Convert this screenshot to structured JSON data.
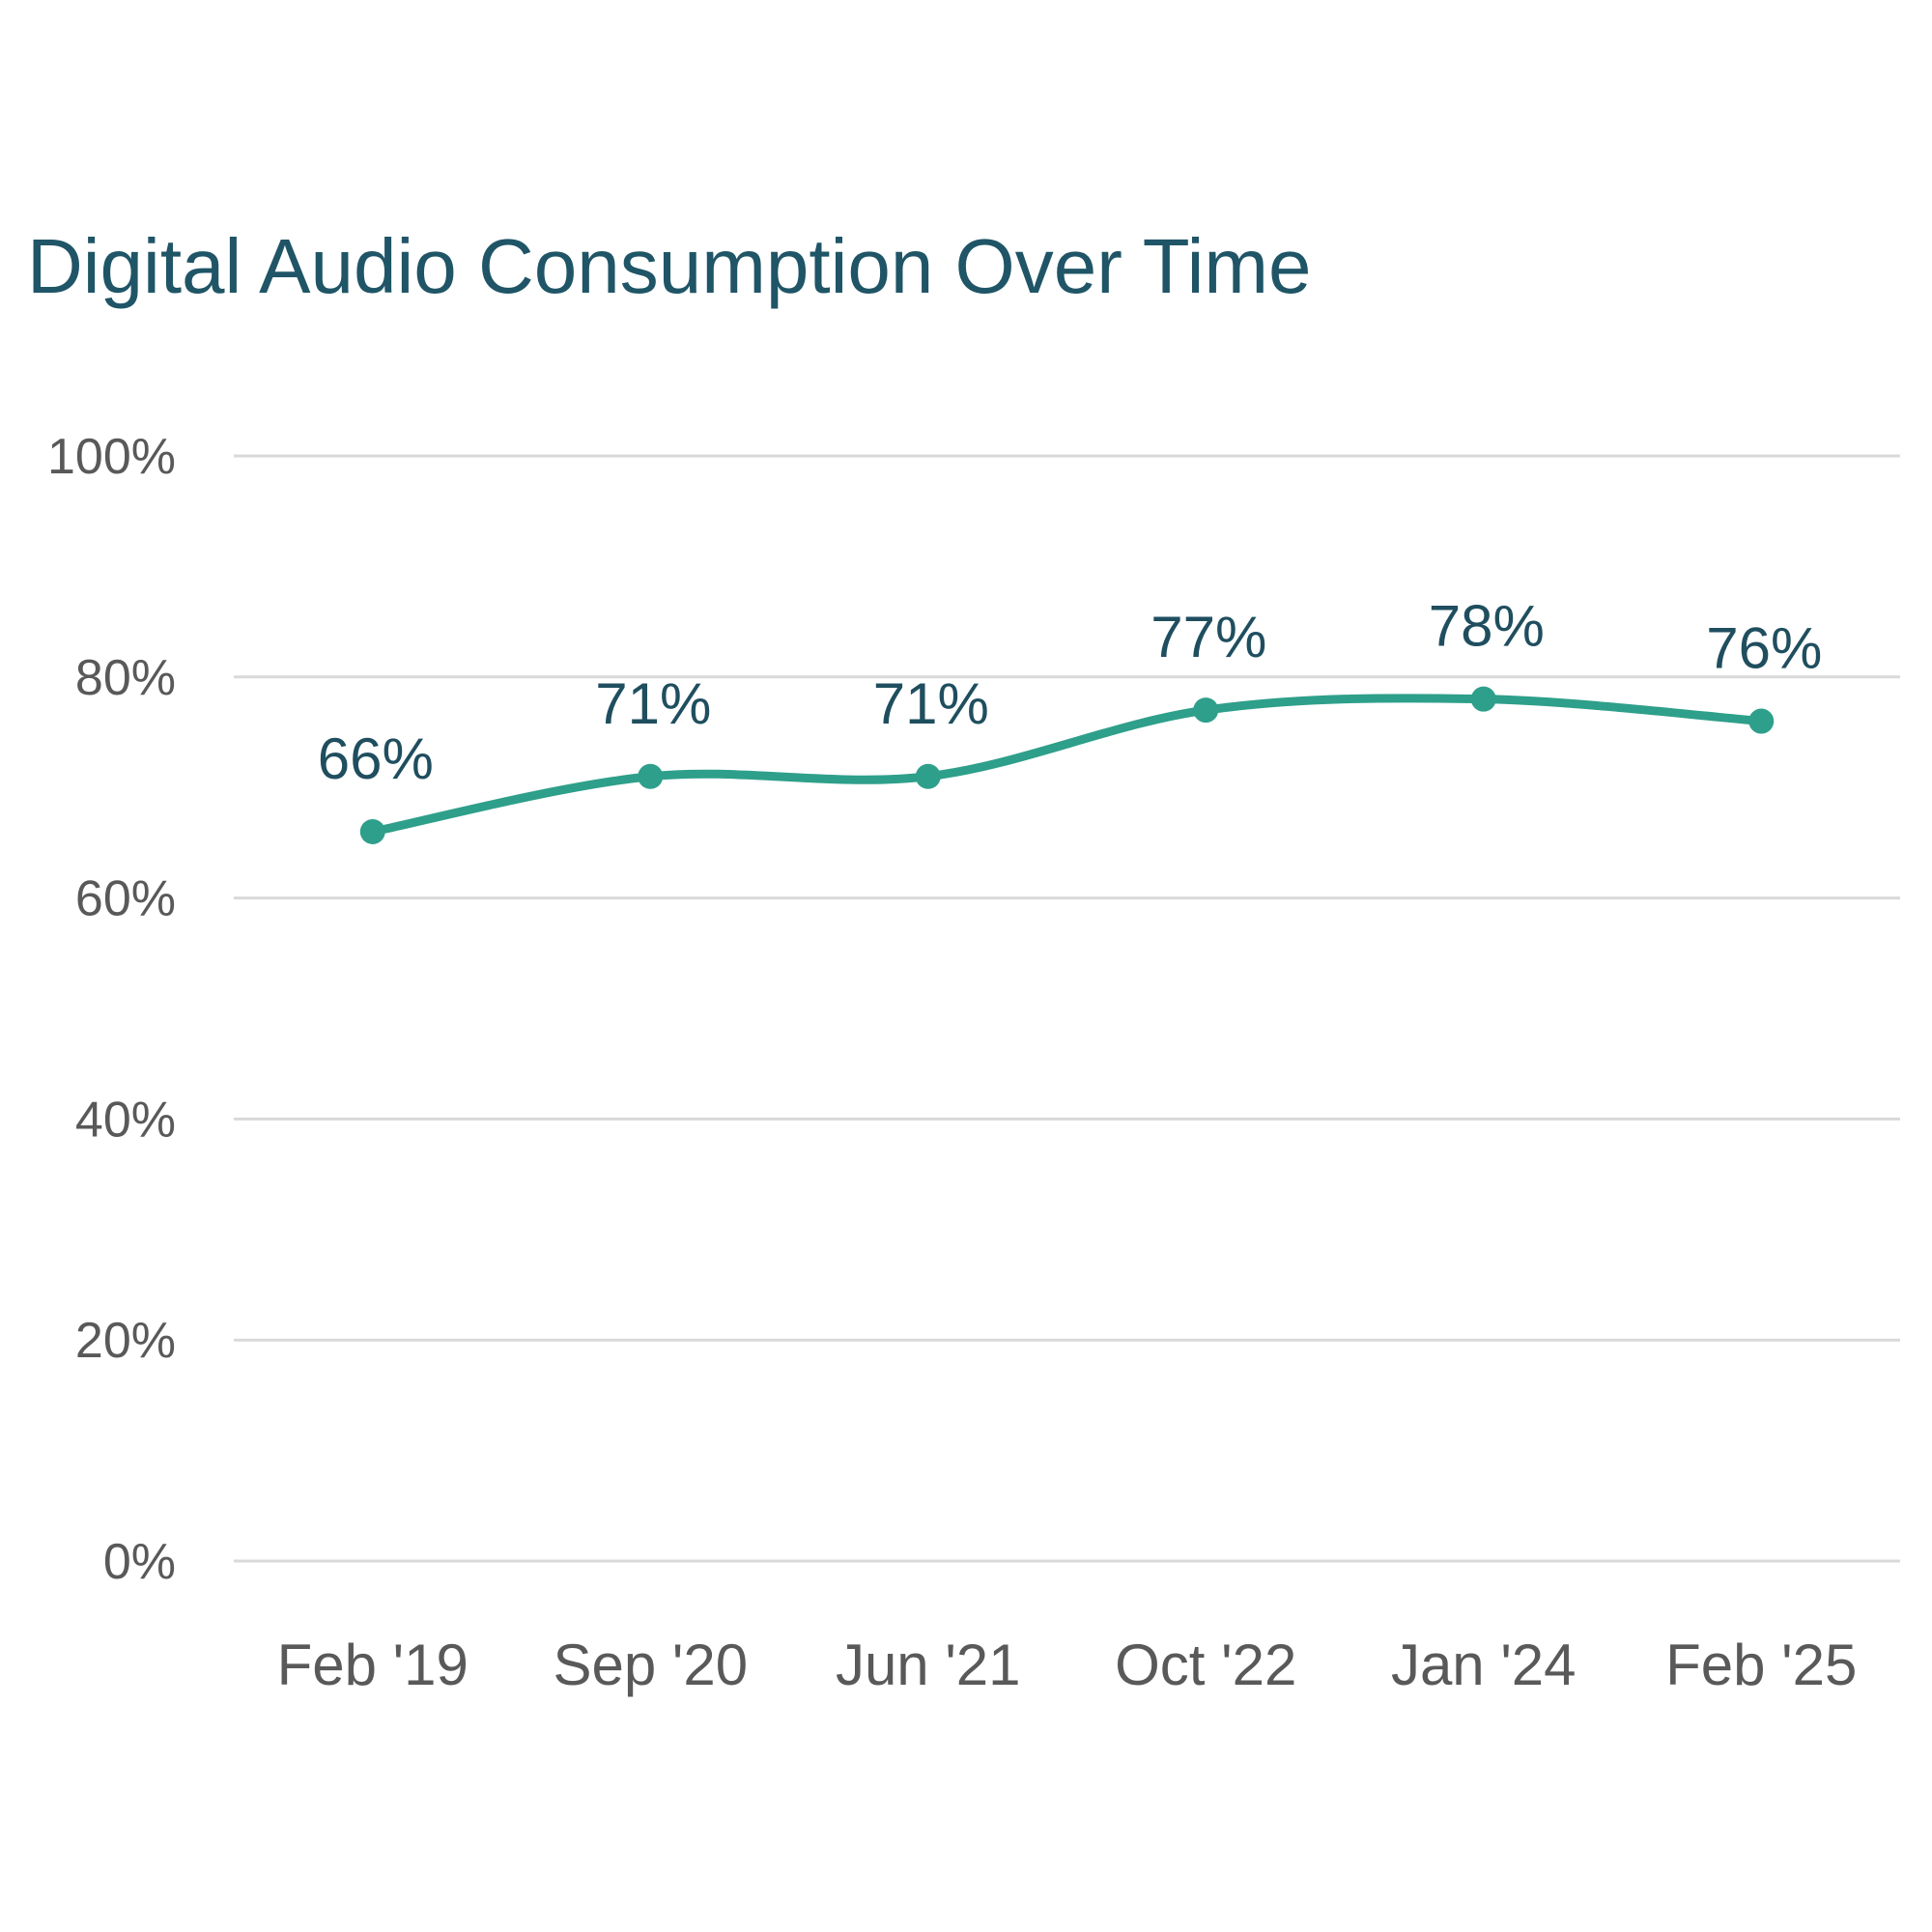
{
  "chart_data": {
    "type": "line",
    "title": "Digital Audio Consumption Over Time",
    "xlabel": "",
    "ylabel": "",
    "categories": [
      "Feb '19",
      "Sep '20",
      "Jun '21",
      "Oct '22",
      "Jan '24",
      "Feb '25"
    ],
    "series": [
      {
        "values": [
          66,
          71,
          71,
          77,
          78,
          76
        ],
        "data_labels": [
          "66%",
          "71%",
          "71%",
          "77%",
          "78%",
          "76%"
        ]
      }
    ],
    "ylim": [
      0,
      100
    ],
    "yticks": [
      0,
      20,
      40,
      60,
      80,
      100
    ],
    "ytick_labels": [
      "0%",
      "20%",
      "40%",
      "60%",
      "80%",
      "100%"
    ],
    "grid": true,
    "smooth": true,
    "legend": "none",
    "colors": {
      "line": "#2e9f8a",
      "title": "#1f5566",
      "data_label": "#1f4e5f",
      "tick": "#595959",
      "grid": "#d9d9d9"
    }
  }
}
